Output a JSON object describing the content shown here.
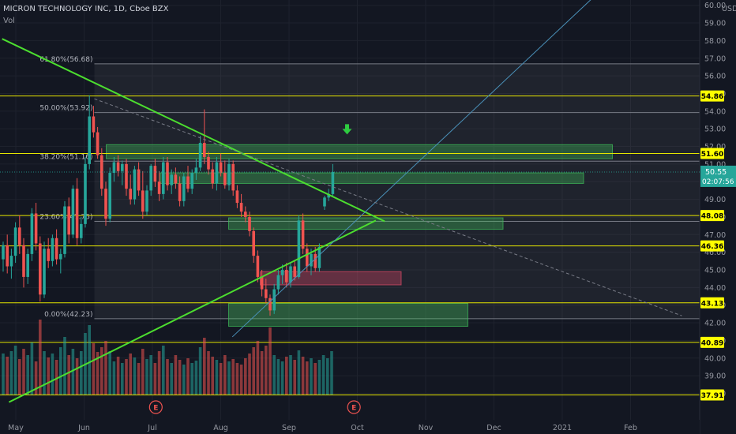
{
  "header": {
    "title": "MICRON TECHNOLOGY INC, 1D, Cboe BZX",
    "volume_label": "Vol",
    "currency": "USD"
  },
  "chart_data": {
    "type": "candlestick",
    "y_range": [
      36.5,
      60.3
    ],
    "y_ticks": [
      {
        "value": 60.0,
        "label": "60.00"
      },
      {
        "value": 59.0,
        "label": "59.00"
      },
      {
        "value": 58.0,
        "label": "58.00"
      },
      {
        "value": 57.0,
        "label": "57.00"
      },
      {
        "value": 56.0,
        "label": "56.00"
      },
      {
        "value": 55.0,
        "label": "55.00"
      },
      {
        "value": 54.0,
        "label": "54.00"
      },
      {
        "value": 53.0,
        "label": "53.00"
      },
      {
        "value": 52.0,
        "label": "52.00"
      },
      {
        "value": 51.0,
        "label": "51.00"
      },
      {
        "value": 50.0,
        "label": "50.00"
      },
      {
        "value": 49.0,
        "label": "49.00"
      },
      {
        "value": 48.0,
        "label": "48.00"
      },
      {
        "value": 47.0,
        "label": "47.00"
      },
      {
        "value": 46.0,
        "label": "46.00"
      },
      {
        "value": 45.0,
        "label": "45.00"
      },
      {
        "value": 44.0,
        "label": "44.00"
      },
      {
        "value": 43.0,
        "label": "43.00"
      },
      {
        "value": 42.0,
        "label": "42.00"
      },
      {
        "value": 41.0,
        "label": "41.00"
      },
      {
        "value": 40.0,
        "label": "40.00"
      },
      {
        "value": 39.0,
        "label": "39.00"
      },
      {
        "value": 38.0,
        "label": "38.00"
      }
    ],
    "x_labels": [
      "May",
      "Jun",
      "Jul",
      "Aug",
      "Sep",
      "Oct",
      "Nov",
      "Dec",
      "2021",
      "Feb"
    ],
    "level_lines": [
      {
        "value": 54.86,
        "label": "54.86"
      },
      {
        "value": 51.6,
        "label": "51.60"
      },
      {
        "value": 48.08,
        "label": "48.08"
      },
      {
        "value": 46.36,
        "label": "46.36"
      },
      {
        "value": 43.13,
        "label": "43.13"
      },
      {
        "value": 40.89,
        "label": "40.89"
      },
      {
        "value": 37.91,
        "label": "37.91"
      }
    ],
    "fib_levels": [
      {
        "label": "61.80%(56.68)",
        "value": 56.68
      },
      {
        "label": "50.00%(53.92)",
        "value": 53.92
      },
      {
        "label": "38.20%(51.16)",
        "value": 51.16
      },
      {
        "label": "23.60%(47.75)",
        "value": 47.75
      },
      {
        "label": "0.00%(42.23)",
        "value": 42.23
      }
    ],
    "last_price": {
      "value": 50.55,
      "label": "50.55",
      "countdown": "02:07:56"
    },
    "zones": [
      {
        "color": "green",
        "from_label": "Jun",
        "to_label": "Dec",
        "y1": 52.1,
        "y2": 51.3
      },
      {
        "color": "green",
        "from_label": "Jul",
        "to_label": "Nov",
        "y1": 50.5,
        "y2": 49.9
      },
      {
        "color": "green",
        "from_label": "Aug",
        "to_label": "Nov",
        "y1": 47.95,
        "y2": 47.3
      },
      {
        "color": "red",
        "from_label": "Aug",
        "to_label": "Sep",
        "y1": 44.9,
        "y2": 44.15
      },
      {
        "color": "green",
        "from_label": "Aug",
        "to_label": "Oct",
        "y1": 43.1,
        "y2": 41.8
      }
    ],
    "trendlines": [
      {
        "name": "descending",
        "points": [
          [
            -0.2,
            58.1
          ],
          [
            5.4,
            47.75
          ]
        ]
      },
      {
        "name": "ascending",
        "points": [
          [
            -0.1,
            37.5
          ],
          [
            5.27,
            47.8
          ]
        ]
      },
      {
        "name": "diagonal",
        "points": [
          [
            3.17,
            41.2
          ],
          [
            8.55,
            60.8
          ]
        ]
      },
      {
        "name": "dashed",
        "points": [
          [
            1.15,
            54.7
          ],
          [
            9.75,
            42.4
          ]
        ]
      }
    ],
    "fib_range": {
      "x1": 1.15,
      "x2": 10.7
    },
    "earnings_markers": [
      {
        "label": "E",
        "x": 2.05
      },
      {
        "label": "E",
        "x": 4.95
      }
    ],
    "signal_arrow": {
      "x": 4.85,
      "price": 52.9
    },
    "candles": [
      {
        "o": 45.6,
        "h": 46.6,
        "l": 44.9,
        "c": 46.4
      },
      {
        "o": 46.4,
        "h": 47.0,
        "l": 44.8,
        "c": 45.2
      },
      {
        "o": 45.2,
        "h": 46.2,
        "l": 44.5,
        "c": 45.8
      },
      {
        "o": 45.8,
        "h": 47.7,
        "l": 45.4,
        "c": 47.4
      },
      {
        "o": 47.4,
        "h": 48.1,
        "l": 45.9,
        "c": 46.4
      },
      {
        "o": 46.4,
        "h": 46.8,
        "l": 44.0,
        "c": 44.6
      },
      {
        "o": 44.6,
        "h": 46.2,
        "l": 44.2,
        "c": 45.9
      },
      {
        "o": 45.9,
        "h": 48.5,
        "l": 45.5,
        "c": 48.2
      },
      {
        "o": 48.2,
        "h": 48.8,
        "l": 46.1,
        "c": 46.5
      },
      {
        "o": 46.5,
        "h": 46.9,
        "l": 43.2,
        "c": 43.6
      },
      {
        "o": 43.6,
        "h": 46.6,
        "l": 43.4,
        "c": 46.2
      },
      {
        "o": 46.2,
        "h": 46.8,
        "l": 45.1,
        "c": 45.5
      },
      {
        "o": 45.5,
        "h": 47.0,
        "l": 45.2,
        "c": 46.8
      },
      {
        "o": 46.8,
        "h": 47.3,
        "l": 45.3,
        "c": 45.6
      },
      {
        "o": 45.6,
        "h": 46.2,
        "l": 44.8,
        "c": 45.9
      },
      {
        "o": 45.9,
        "h": 48.9,
        "l": 45.7,
        "c": 48.6
      },
      {
        "o": 48.6,
        "h": 49.1,
        "l": 46.5,
        "c": 47.0
      },
      {
        "o": 47.0,
        "h": 49.8,
        "l": 46.8,
        "c": 49.6
      },
      {
        "o": 49.6,
        "h": 50.2,
        "l": 46.4,
        "c": 46.8
      },
      {
        "o": 46.8,
        "h": 48.0,
        "l": 46.5,
        "c": 47.6
      },
      {
        "o": 47.6,
        "h": 51.4,
        "l": 47.4,
        "c": 51.0
      },
      {
        "o": 51.0,
        "h": 54.9,
        "l": 50.7,
        "c": 53.7
      },
      {
        "o": 53.7,
        "h": 54.3,
        "l": 52.5,
        "c": 52.8
      },
      {
        "o": 52.8,
        "h": 53.1,
        "l": 51.3,
        "c": 51.5
      },
      {
        "o": 51.5,
        "h": 51.9,
        "l": 49.2,
        "c": 49.6
      },
      {
        "o": 49.6,
        "h": 50.0,
        "l": 47.5,
        "c": 47.9
      },
      {
        "o": 47.9,
        "h": 50.8,
        "l": 47.7,
        "c": 50.5
      },
      {
        "o": 50.5,
        "h": 51.4,
        "l": 50.0,
        "c": 51.1
      },
      {
        "o": 51.1,
        "h": 51.5,
        "l": 50.3,
        "c": 50.6
      },
      {
        "o": 50.6,
        "h": 51.2,
        "l": 49.8,
        "c": 51.0
      },
      {
        "o": 51.0,
        "h": 51.3,
        "l": 49.2,
        "c": 49.6
      },
      {
        "o": 49.6,
        "h": 50.4,
        "l": 48.7,
        "c": 49.0
      },
      {
        "o": 49.0,
        "h": 50.9,
        "l": 48.7,
        "c": 50.7
      },
      {
        "o": 50.7,
        "h": 51.1,
        "l": 49.2,
        "c": 49.5
      },
      {
        "o": 49.5,
        "h": 50.6,
        "l": 47.9,
        "c": 48.3
      },
      {
        "o": 48.3,
        "h": 49.8,
        "l": 48.1,
        "c": 49.5
      },
      {
        "o": 49.5,
        "h": 51.0,
        "l": 49.2,
        "c": 50.9
      },
      {
        "o": 50.9,
        "h": 51.3,
        "l": 49.7,
        "c": 50.0
      },
      {
        "o": 50.0,
        "h": 50.6,
        "l": 48.9,
        "c": 49.3
      },
      {
        "o": 49.3,
        "h": 51.4,
        "l": 49.0,
        "c": 51.1
      },
      {
        "o": 51.1,
        "h": 51.4,
        "l": 49.5,
        "c": 49.8
      },
      {
        "o": 49.8,
        "h": 50.7,
        "l": 49.3,
        "c": 50.4
      },
      {
        "o": 50.4,
        "h": 50.8,
        "l": 49.6,
        "c": 49.9
      },
      {
        "o": 49.9,
        "h": 50.3,
        "l": 48.6,
        "c": 48.9
      },
      {
        "o": 48.9,
        "h": 50.5,
        "l": 48.6,
        "c": 50.3
      },
      {
        "o": 50.3,
        "h": 50.9,
        "l": 49.4,
        "c": 49.6
      },
      {
        "o": 49.6,
        "h": 50.7,
        "l": 49.3,
        "c": 50.5
      },
      {
        "o": 50.5,
        "h": 51.3,
        "l": 50.1,
        "c": 50.8
      },
      {
        "o": 50.8,
        "h": 52.6,
        "l": 50.6,
        "c": 52.2
      },
      {
        "o": 52.2,
        "h": 54.1,
        "l": 51.0,
        "c": 51.4
      },
      {
        "o": 51.4,
        "h": 51.7,
        "l": 50.4,
        "c": 50.7
      },
      {
        "o": 50.7,
        "h": 51.1,
        "l": 49.6,
        "c": 49.9
      },
      {
        "o": 49.9,
        "h": 51.4,
        "l": 49.5,
        "c": 51.1
      },
      {
        "o": 51.1,
        "h": 51.6,
        "l": 50.3,
        "c": 50.5
      },
      {
        "o": 50.5,
        "h": 51.2,
        "l": 49.6,
        "c": 49.8
      },
      {
        "o": 49.8,
        "h": 51.3,
        "l": 49.5,
        "c": 51.0
      },
      {
        "o": 51.0,
        "h": 51.2,
        "l": 49.2,
        "c": 49.5
      },
      {
        "o": 49.5,
        "h": 49.8,
        "l": 48.5,
        "c": 48.8
      },
      {
        "o": 48.8,
        "h": 49.3,
        "l": 48.0,
        "c": 48.3
      },
      {
        "o": 48.3,
        "h": 48.6,
        "l": 47.7,
        "c": 48.0
      },
      {
        "o": 48.0,
        "h": 48.3,
        "l": 46.9,
        "c": 47.2
      },
      {
        "o": 47.2,
        "h": 47.4,
        "l": 45.4,
        "c": 45.8
      },
      {
        "o": 45.8,
        "h": 46.1,
        "l": 44.3,
        "c": 44.6
      },
      {
        "o": 44.6,
        "h": 45.0,
        "l": 43.5,
        "c": 43.9
      },
      {
        "o": 43.9,
        "h": 44.5,
        "l": 43.1,
        "c": 43.4
      },
      {
        "o": 43.4,
        "h": 43.6,
        "l": 42.4,
        "c": 42.7
      },
      {
        "o": 42.7,
        "h": 44.2,
        "l": 42.5,
        "c": 43.9
      },
      {
        "o": 43.9,
        "h": 45.0,
        "l": 43.6,
        "c": 44.7
      },
      {
        "o": 44.7,
        "h": 45.3,
        "l": 44.2,
        "c": 45.0
      },
      {
        "o": 45.0,
        "h": 45.4,
        "l": 44.0,
        "c": 44.3
      },
      {
        "o": 44.3,
        "h": 45.4,
        "l": 44.0,
        "c": 45.2
      },
      {
        "o": 45.2,
        "h": 45.5,
        "l": 44.4,
        "c": 44.6
      },
      {
        "o": 44.6,
        "h": 48.1,
        "l": 44.5,
        "c": 47.8
      },
      {
        "o": 47.8,
        "h": 48.2,
        "l": 45.9,
        "c": 46.2
      },
      {
        "o": 46.2,
        "h": 46.5,
        "l": 44.9,
        "c": 45.2
      },
      {
        "o": 45.2,
        "h": 46.2,
        "l": 44.7,
        "c": 45.9
      },
      {
        "o": 45.9,
        "h": 46.3,
        "l": 44.9,
        "c": 45.1
      },
      {
        "o": 45.1,
        "h": 46.5,
        "l": 44.9,
        "c": 46.3
      },
      {
        "o": 48.6,
        "h": 49.2,
        "l": 48.4,
        "c": 49.1
      },
      {
        "o": 49.1,
        "h": 49.6,
        "l": 48.9,
        "c": 49.3
      },
      {
        "o": 49.3,
        "h": 51.0,
        "l": 49.2,
        "c": 50.55
      }
    ],
    "volumes": [
      0.52,
      0.48,
      0.55,
      0.62,
      0.45,
      0.58,
      0.5,
      0.66,
      0.42,
      0.95,
      0.55,
      0.47,
      0.52,
      0.44,
      0.6,
      0.73,
      0.5,
      0.58,
      0.46,
      0.55,
      0.78,
      0.88,
      0.65,
      0.54,
      0.6,
      0.68,
      0.55,
      0.42,
      0.48,
      0.4,
      0.45,
      0.52,
      0.47,
      0.4,
      0.58,
      0.45,
      0.5,
      0.4,
      0.55,
      0.62,
      0.45,
      0.4,
      0.5,
      0.44,
      0.38,
      0.46,
      0.4,
      0.43,
      0.6,
      0.72,
      0.55,
      0.48,
      0.44,
      0.4,
      0.5,
      0.42,
      0.45,
      0.4,
      0.38,
      0.46,
      0.52,
      0.6,
      0.68,
      0.55,
      0.62,
      0.85,
      0.5,
      0.45,
      0.42,
      0.48,
      0.5,
      0.44,
      0.56,
      0.48,
      0.42,
      0.46,
      0.4,
      0.44,
      0.5,
      0.46,
      0.55
    ]
  }
}
